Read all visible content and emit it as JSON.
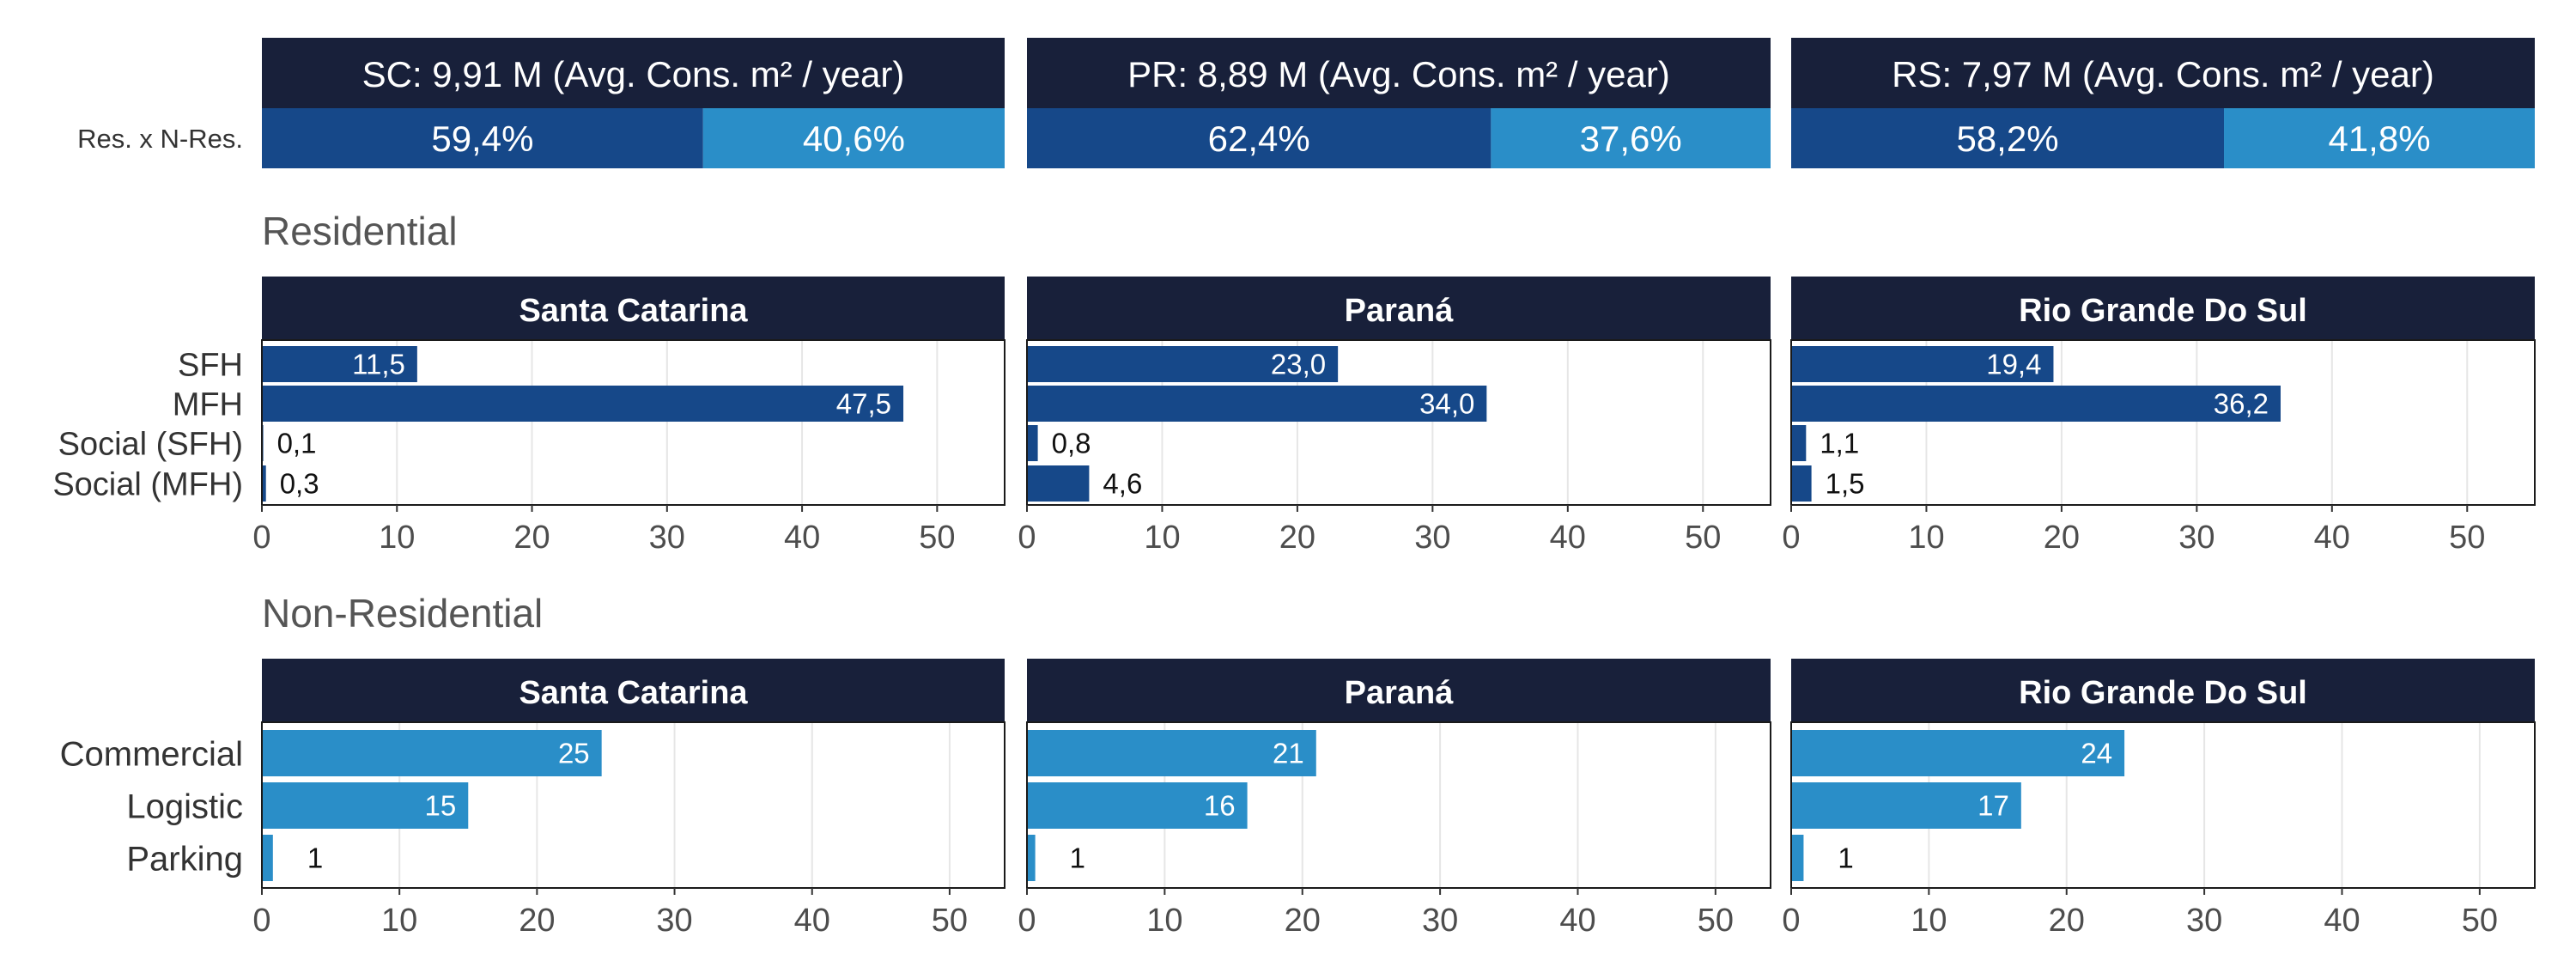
{
  "colors": {
    "header": "#18203a",
    "residential": "#164889",
    "non_residential": "#2a8ec8",
    "grid": "#e6e6e6",
    "tick_text": "#4d4d4d",
    "section_text": "#555555",
    "value_dark": "#111111",
    "value_light": "#ffffff"
  },
  "share_row_label": "Res. x N-Res.",
  "sections": {
    "residential": "Residential",
    "non_residential": "Non-Residential"
  },
  "chart_data": [
    {
      "type": "bar",
      "stacked": true,
      "orientation": "horizontal",
      "row_label": "Res. x N-Res.",
      "panels": [
        {
          "title": "SC: 9,91 M (Avg. Cons. m² / year)",
          "values": [
            59.4,
            40.6
          ],
          "labels": [
            "59,4%",
            "40,6%"
          ]
        },
        {
          "title": "PR: 8,89 M (Avg. Cons. m² / year)",
          "values": [
            62.4,
            37.6
          ],
          "labels": [
            "62,4%",
            "37,6%"
          ]
        },
        {
          "title": "RS: 7,97 M (Avg. Cons. m² / year)",
          "values": [
            58.2,
            41.8
          ],
          "labels": [
            "58,2%",
            "41,8%"
          ]
        }
      ]
    },
    {
      "type": "bar",
      "orientation": "horizontal",
      "title": "Residential",
      "categories": [
        "SFH",
        "MFH",
        "Social (SFH)",
        "Social (MFH)"
      ],
      "xlim": [
        0,
        55
      ],
      "xticks": [
        0,
        10,
        20,
        30,
        40,
        50
      ],
      "grid": true,
      "panels": [
        {
          "title": "Santa Catarina",
          "values": [
            11.5,
            47.5,
            0.1,
            0.3
          ],
          "labels": [
            "11,5",
            "47,5",
            "0,1",
            "0,3"
          ]
        },
        {
          "title": "Paraná",
          "values": [
            23.0,
            34.0,
            0.8,
            4.6
          ],
          "labels": [
            "23,0",
            "34,0",
            "0,8",
            "4,6"
          ]
        },
        {
          "title": "Rio Grande Do Sul",
          "values": [
            19.4,
            36.2,
            1.1,
            1.5
          ],
          "labels": [
            "19,4",
            "36,2",
            "1,1",
            "1,5"
          ]
        }
      ]
    },
    {
      "type": "bar",
      "orientation": "horizontal",
      "title": "Non-Residential",
      "categories": [
        "Commercial",
        "Logistic",
        "Parking"
      ],
      "xlim": [
        0,
        54
      ],
      "xticks": [
        0,
        10,
        20,
        30,
        40,
        50
      ],
      "grid": true,
      "panels": [
        {
          "title": "Santa Catarina",
          "values": [
            24.7,
            15.0,
            0.8
          ],
          "labels": [
            "25",
            "15",
            "1"
          ]
        },
        {
          "title": "Paraná",
          "values": [
            21.0,
            16.0,
            0.6
          ],
          "labels": [
            "21",
            "16",
            "1"
          ]
        },
        {
          "title": "Rio Grande Do Sul",
          "values": [
            24.2,
            16.7,
            0.9
          ],
          "labels": [
            "24",
            "17",
            "1"
          ]
        }
      ]
    }
  ]
}
